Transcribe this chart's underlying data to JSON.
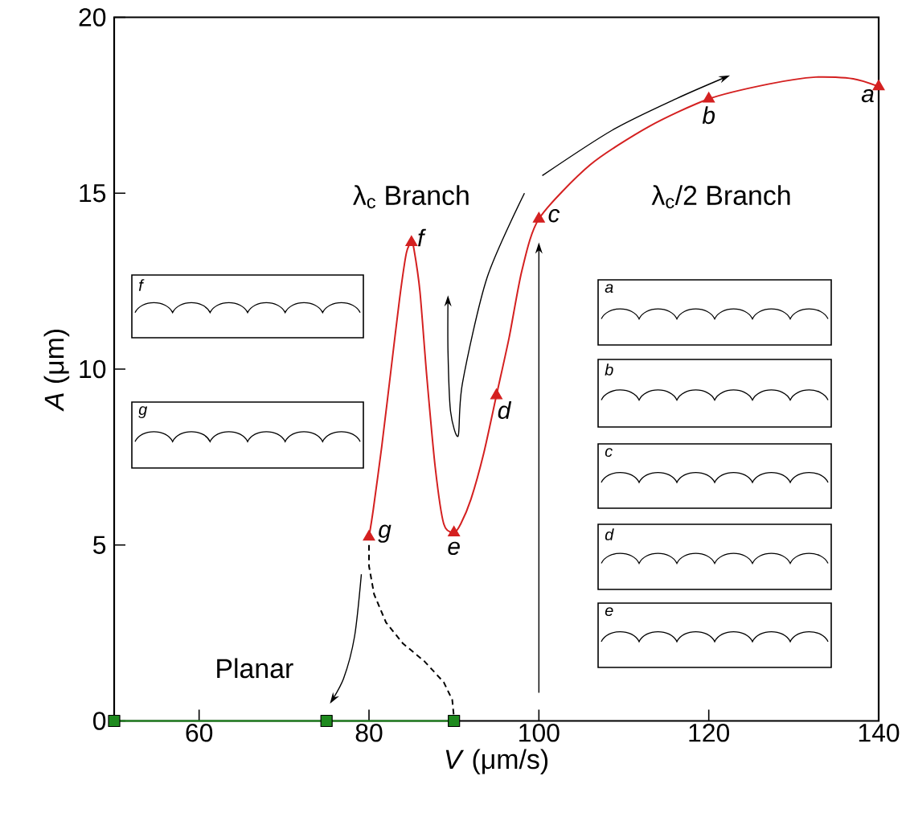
{
  "chart_data": {
    "type": "line",
    "xlabel": "*V* (μm/s)",
    "ylabel": "*A* (μm)",
    "xlim": [
      50,
      140
    ],
    "ylim": [
      0,
      20
    ],
    "xticks": [
      60,
      80,
      100,
      120,
      140
    ],
    "yticks": [
      0,
      5,
      10,
      15,
      20
    ],
    "grid": false,
    "series": [
      {
        "color": "#d42020",
        "marker": "none",
        "x": [
          140,
          137,
          132.6,
          127,
          120,
          113,
          106,
          100,
          98,
          96.5,
          95,
          93.5,
          92,
          90.8,
          90,
          88.8,
          87.8,
          86.8,
          86,
          85.3,
          85,
          84.4,
          83.6,
          82.6,
          81.5,
          80.5,
          80
        ],
        "values": [
          18.03,
          18.25,
          18.3,
          18.1,
          17.68,
          16.9,
          15.8,
          14.27,
          12.8,
          10.9,
          9.25,
          7.6,
          6.3,
          5.6,
          5.35,
          5.6,
          7.2,
          9.8,
          12.2,
          13.4,
          13.6,
          13.3,
          12.0,
          10.0,
          7.8,
          6.0,
          5.23
        ]
      },
      {
        "type": "scatter",
        "color": "#d42020",
        "marker": "triangle",
        "x": [
          140,
          120,
          100,
          95,
          90,
          85,
          80
        ],
        "values": [
          18.03,
          17.68,
          14.27,
          9.25,
          5.35,
          13.6,
          5.23
        ]
      },
      {
        "color": "#1e8a1e",
        "marker": "square",
        "x": [
          50,
          75,
          90
        ],
        "values": [
          0,
          0,
          0
        ]
      },
      {
        "color": "#000000",
        "marker": "none",
        "line_style": "dashed",
        "x": [
          80,
          80,
          80.6,
          82,
          84,
          86.5,
          88.8,
          89.8,
          90
        ],
        "values": [
          5.0,
          4.4,
          3.6,
          2.8,
          2.2,
          1.7,
          1.1,
          0.6,
          0.1
        ]
      }
    ],
    "annotations": [
      {
        "text": "*a*",
        "x": 140,
        "y": 18.03
      },
      {
        "text": "*b*",
        "x": 120,
        "y": 17.68
      },
      {
        "text": "*c*",
        "x": 100,
        "y": 14.27
      },
      {
        "text": "*d*",
        "x": 95,
        "y": 9.25
      },
      {
        "text": "*e*",
        "x": 90,
        "y": 5.35
      },
      {
        "text": "*f*",
        "x": 85,
        "y": 13.6
      },
      {
        "text": "*g*",
        "x": 80,
        "y": 5.23
      },
      "λ$_{c}$ Branch",
      "λ$_{c}$/2 Branch",
      "Planar",
      "*f*",
      "*g*",
      "*a*",
      "*b*",
      "*c*",
      "*d*",
      "*e*"
    ]
  }
}
